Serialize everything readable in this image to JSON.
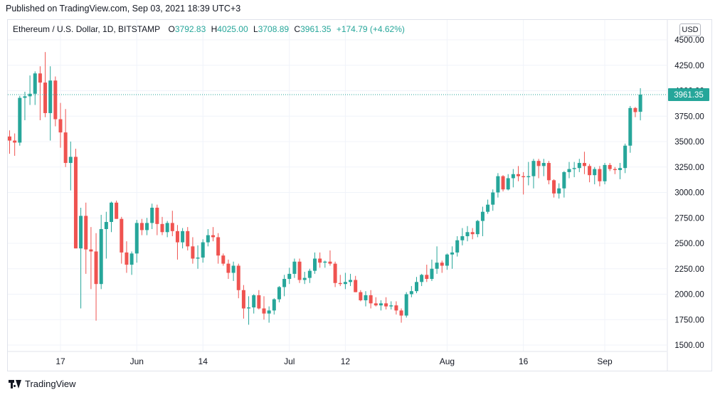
{
  "published": "Published on TradingView.com, Sep 03, 2021 18:39 UTC+3",
  "legend": {
    "symbol": "Ethereum / U.S. Dollar, 1D, BITSTAMP",
    "o_label": "O",
    "o_value": "3792.83",
    "h_label": "H",
    "h_value": "4025.00",
    "l_label": "L",
    "l_value": "3708.89",
    "c_label": "C",
    "c_value": "3961.35",
    "change": "+174.79 (+4.62%)"
  },
  "currency": "USD",
  "last_price_label": "3961.35",
  "brand": "TradingView",
  "colors": {
    "up": "#26a69a",
    "down": "#ef5350",
    "grid": "#f0f3fa",
    "text": "#131722",
    "price_line": "#26a69a"
  },
  "chart_data": {
    "type": "candlestick",
    "title": "Ethereum / U.S. Dollar, 1D, BITSTAMP",
    "ylim": [
      1420,
      4600
    ],
    "y_ticks": [
      1500,
      1750,
      2000,
      2250,
      2500,
      2750,
      3000,
      3250,
      3500,
      3750,
      4000,
      4250,
      4500
    ],
    "y_tick_labels": [
      "1500.00",
      "1750.00",
      "2000.00",
      "2250.00",
      "2500.00",
      "2750.00",
      "3000.00",
      "3250.00",
      "3500.00",
      "3750.00",
      "4000.00",
      "4250.00",
      "4500.00"
    ],
    "x_ticks": [
      {
        "label": "17",
        "index": 10
      },
      {
        "label": "Jun",
        "index": 25
      },
      {
        "label": "14",
        "index": 38
      },
      {
        "label": "Jul",
        "index": 55
      },
      {
        "label": "12",
        "index": 66
      },
      {
        "label": "Aug",
        "index": 86
      },
      {
        "label": "16",
        "index": 101
      },
      {
        "label": "Sep",
        "index": 117
      }
    ],
    "grid": true,
    "last_price": 3961.35,
    "candles": [
      {
        "o": 3550,
        "h": 3610,
        "l": 3380,
        "c": 3510
      },
      {
        "o": 3510,
        "h": 3580,
        "l": 3360,
        "c": 3490
      },
      {
        "o": 3490,
        "h": 3950,
        "l": 3460,
        "c": 3930
      },
      {
        "o": 3930,
        "h": 3990,
        "l": 3710,
        "c": 3945
      },
      {
        "o": 3945,
        "h": 4150,
        "l": 3860,
        "c": 3970
      },
      {
        "o": 3970,
        "h": 4190,
        "l": 3860,
        "c": 4170
      },
      {
        "o": 4170,
        "h": 4240,
        "l": 3710,
        "c": 4080
      },
      {
        "o": 4080,
        "h": 4380,
        "l": 3740,
        "c": 3780
      },
      {
        "o": 3780,
        "h": 4240,
        "l": 3510,
        "c": 4100
      },
      {
        "o": 4100,
        "h": 4140,
        "l": 3650,
        "c": 3720
      },
      {
        "o": 3720,
        "h": 3880,
        "l": 3440,
        "c": 3590
      },
      {
        "o": 3590,
        "h": 3820,
        "l": 3250,
        "c": 3290
      },
      {
        "o": 3290,
        "h": 3500,
        "l": 3020,
        "c": 3350
      },
      {
        "o": 3350,
        "h": 3430,
        "l": 2450,
        "c": 2450
      },
      {
        "o": 2450,
        "h": 2850,
        "l": 1860,
        "c": 2770
      },
      {
        "o": 2770,
        "h": 2900,
        "l": 2200,
        "c": 2440
      },
      {
        "o": 2440,
        "h": 2660,
        "l": 2050,
        "c": 2420
      },
      {
        "o": 2420,
        "h": 2600,
        "l": 1740,
        "c": 2100
      },
      {
        "o": 2100,
        "h": 2780,
        "l": 2050,
        "c": 2640
      },
      {
        "o": 2640,
        "h": 2810,
        "l": 2350,
        "c": 2710
      },
      {
        "o": 2710,
        "h": 2910,
        "l": 2610,
        "c": 2900
      },
      {
        "o": 2900,
        "h": 2920,
        "l": 2740,
        "c": 2740
      },
      {
        "o": 2740,
        "h": 2760,
        "l": 2300,
        "c": 2410
      },
      {
        "o": 2410,
        "h": 2520,
        "l": 2210,
        "c": 2290
      },
      {
        "o": 2290,
        "h": 2420,
        "l": 2190,
        "c": 2400
      },
      {
        "o": 2400,
        "h": 2730,
        "l": 2310,
        "c": 2700
      },
      {
        "o": 2700,
        "h": 2740,
        "l": 2580,
        "c": 2630
      },
      {
        "o": 2630,
        "h": 2750,
        "l": 2580,
        "c": 2700
      },
      {
        "o": 2700,
        "h": 2890,
        "l": 2640,
        "c": 2850
      },
      {
        "o": 2850,
        "h": 2880,
        "l": 2580,
        "c": 2690
      },
      {
        "o": 2690,
        "h": 2760,
        "l": 2580,
        "c": 2610
      },
      {
        "o": 2610,
        "h": 2720,
        "l": 2560,
        "c": 2700
      },
      {
        "o": 2700,
        "h": 2820,
        "l": 2570,
        "c": 2620
      },
      {
        "o": 2620,
        "h": 2680,
        "l": 2340,
        "c": 2510
      },
      {
        "o": 2510,
        "h": 2650,
        "l": 2450,
        "c": 2620
      },
      {
        "o": 2620,
        "h": 2660,
        "l": 2430,
        "c": 2470
      },
      {
        "o": 2470,
        "h": 2560,
        "l": 2300,
        "c": 2350
      },
      {
        "o": 2350,
        "h": 2480,
        "l": 2250,
        "c": 2360
      },
      {
        "o": 2360,
        "h": 2540,
        "l": 2310,
        "c": 2510
      },
      {
        "o": 2510,
        "h": 2640,
        "l": 2470,
        "c": 2580
      },
      {
        "o": 2580,
        "h": 2660,
        "l": 2520,
        "c": 2560
      },
      {
        "o": 2560,
        "h": 2600,
        "l": 2300,
        "c": 2380
      },
      {
        "o": 2380,
        "h": 2400,
        "l": 2280,
        "c": 2300
      },
      {
        "o": 2300,
        "h": 2340,
        "l": 2150,
        "c": 2210
      },
      {
        "o": 2210,
        "h": 2320,
        "l": 2130,
        "c": 2280
      },
      {
        "o": 2280,
        "h": 2300,
        "l": 1960,
        "c": 2040
      },
      {
        "o": 2040,
        "h": 2090,
        "l": 1760,
        "c": 1860
      },
      {
        "o": 1860,
        "h": 1980,
        "l": 1700,
        "c": 1870
      },
      {
        "o": 1870,
        "h": 2000,
        "l": 1810,
        "c": 1990
      },
      {
        "o": 1990,
        "h": 2040,
        "l": 1850,
        "c": 1860
      },
      {
        "o": 1860,
        "h": 1980,
        "l": 1750,
        "c": 1810
      },
      {
        "o": 1810,
        "h": 1880,
        "l": 1720,
        "c": 1840
      },
      {
        "o": 1840,
        "h": 1960,
        "l": 1800,
        "c": 1950
      },
      {
        "o": 1950,
        "h": 2080,
        "l": 1920,
        "c": 2070
      },
      {
        "o": 2070,
        "h": 2190,
        "l": 1980,
        "c": 2150
      },
      {
        "o": 2150,
        "h": 2260,
        "l": 2100,
        "c": 2200
      },
      {
        "o": 2200,
        "h": 2350,
        "l": 2160,
        "c": 2320
      },
      {
        "o": 2320,
        "h": 2350,
        "l": 2110,
        "c": 2140
      },
      {
        "o": 2140,
        "h": 2220,
        "l": 2100,
        "c": 2160
      },
      {
        "o": 2160,
        "h": 2250,
        "l": 2110,
        "c": 2230
      },
      {
        "o": 2230,
        "h": 2410,
        "l": 2200,
        "c": 2350
      },
      {
        "o": 2350,
        "h": 2410,
        "l": 2260,
        "c": 2310
      },
      {
        "o": 2310,
        "h": 2330,
        "l": 2260,
        "c": 2320
      },
      {
        "o": 2320,
        "h": 2430,
        "l": 2280,
        "c": 2300
      },
      {
        "o": 2300,
        "h": 2320,
        "l": 2070,
        "c": 2110
      },
      {
        "o": 2110,
        "h": 2190,
        "l": 2080,
        "c": 2100
      },
      {
        "o": 2100,
        "h": 2210,
        "l": 2050,
        "c": 2120
      },
      {
        "o": 2120,
        "h": 2200,
        "l": 2080,
        "c": 2140
      },
      {
        "o": 2140,
        "h": 2180,
        "l": 2020,
        "c": 2020
      },
      {
        "o": 2020,
        "h": 2040,
        "l": 1930,
        "c": 1940
      },
      {
        "o": 1940,
        "h": 2030,
        "l": 1880,
        "c": 1990
      },
      {
        "o": 1990,
        "h": 2040,
        "l": 1860,
        "c": 1910
      },
      {
        "o": 1910,
        "h": 1970,
        "l": 1880,
        "c": 1890
      },
      {
        "o": 1890,
        "h": 1940,
        "l": 1840,
        "c": 1910
      },
      {
        "o": 1910,
        "h": 1970,
        "l": 1850,
        "c": 1880
      },
      {
        "o": 1880,
        "h": 1930,
        "l": 1850,
        "c": 1890
      },
      {
        "o": 1890,
        "h": 1930,
        "l": 1800,
        "c": 1840
      },
      {
        "o": 1840,
        "h": 1860,
        "l": 1720,
        "c": 1790
      },
      {
        "o": 1790,
        "h": 2020,
        "l": 1770,
        "c": 2000
      },
      {
        "o": 2000,
        "h": 2080,
        "l": 1970,
        "c": 2030
      },
      {
        "o": 2030,
        "h": 2170,
        "l": 2010,
        "c": 2120
      },
      {
        "o": 2120,
        "h": 2200,
        "l": 2080,
        "c": 2190
      },
      {
        "o": 2190,
        "h": 2290,
        "l": 2120,
        "c": 2150
      },
      {
        "o": 2150,
        "h": 2340,
        "l": 2130,
        "c": 2250
      },
      {
        "o": 2250,
        "h": 2470,
        "l": 2200,
        "c": 2310
      },
      {
        "o": 2310,
        "h": 2330,
        "l": 2210,
        "c": 2280
      },
      {
        "o": 2280,
        "h": 2400,
        "l": 2240,
        "c": 2390
      },
      {
        "o": 2390,
        "h": 2470,
        "l": 2250,
        "c": 2410
      },
      {
        "o": 2410,
        "h": 2570,
        "l": 2370,
        "c": 2530
      },
      {
        "o": 2530,
        "h": 2650,
        "l": 2480,
        "c": 2570
      },
      {
        "o": 2570,
        "h": 2670,
        "l": 2520,
        "c": 2610
      },
      {
        "o": 2610,
        "h": 2650,
        "l": 2540,
        "c": 2590
      },
      {
        "o": 2590,
        "h": 2730,
        "l": 2560,
        "c": 2720
      },
      {
        "o": 2720,
        "h": 2860,
        "l": 2570,
        "c": 2810
      },
      {
        "o": 2810,
        "h": 2930,
        "l": 2790,
        "c": 2880
      },
      {
        "o": 2880,
        "h": 3030,
        "l": 2820,
        "c": 3000
      },
      {
        "o": 3000,
        "h": 3190,
        "l": 2950,
        "c": 3160
      },
      {
        "o": 3160,
        "h": 3170,
        "l": 3010,
        "c": 3030
      },
      {
        "o": 3030,
        "h": 3180,
        "l": 3020,
        "c": 3140
      },
      {
        "o": 3140,
        "h": 3230,
        "l": 3050,
        "c": 3180
      },
      {
        "o": 3180,
        "h": 3260,
        "l": 3110,
        "c": 3160
      },
      {
        "o": 3160,
        "h": 3200,
        "l": 2980,
        "c": 3150
      },
      {
        "o": 3150,
        "h": 3300,
        "l": 3070,
        "c": 3160
      },
      {
        "o": 3160,
        "h": 3330,
        "l": 3040,
        "c": 3310
      },
      {
        "o": 3310,
        "h": 3330,
        "l": 3140,
        "c": 3260
      },
      {
        "o": 3260,
        "h": 3330,
        "l": 3160,
        "c": 3290
      },
      {
        "o": 3290,
        "h": 3310,
        "l": 3080,
        "c": 3120
      },
      {
        "o": 3120,
        "h": 3130,
        "l": 2950,
        "c": 2990
      },
      {
        "o": 2990,
        "h": 3090,
        "l": 2940,
        "c": 3040
      },
      {
        "o": 3040,
        "h": 3210,
        "l": 2950,
        "c": 3200
      },
      {
        "o": 3200,
        "h": 3300,
        "l": 3140,
        "c": 3230
      },
      {
        "o": 3230,
        "h": 3300,
        "l": 3150,
        "c": 3240
      },
      {
        "o": 3240,
        "h": 3330,
        "l": 3200,
        "c": 3290
      },
      {
        "o": 3290,
        "h": 3400,
        "l": 3180,
        "c": 3260
      },
      {
        "o": 3260,
        "h": 3280,
        "l": 3100,
        "c": 3170
      },
      {
        "o": 3170,
        "h": 3250,
        "l": 3080,
        "c": 3230
      },
      {
        "o": 3230,
        "h": 3260,
        "l": 3060,
        "c": 3110
      },
      {
        "o": 3110,
        "h": 3290,
        "l": 3080,
        "c": 3270
      },
      {
        "o": 3270,
        "h": 3290,
        "l": 3210,
        "c": 3230
      },
      {
        "o": 3230,
        "h": 3250,
        "l": 3180,
        "c": 3220
      },
      {
        "o": 3220,
        "h": 3290,
        "l": 3130,
        "c": 3240
      },
      {
        "o": 3240,
        "h": 3480,
        "l": 3190,
        "c": 3460
      },
      {
        "o": 3460,
        "h": 3850,
        "l": 3390,
        "c": 3830
      },
      {
        "o": 3830,
        "h": 3840,
        "l": 3740,
        "c": 3790
      },
      {
        "o": 3792.83,
        "h": 4025,
        "l": 3708.89,
        "c": 3961.35
      }
    ]
  }
}
